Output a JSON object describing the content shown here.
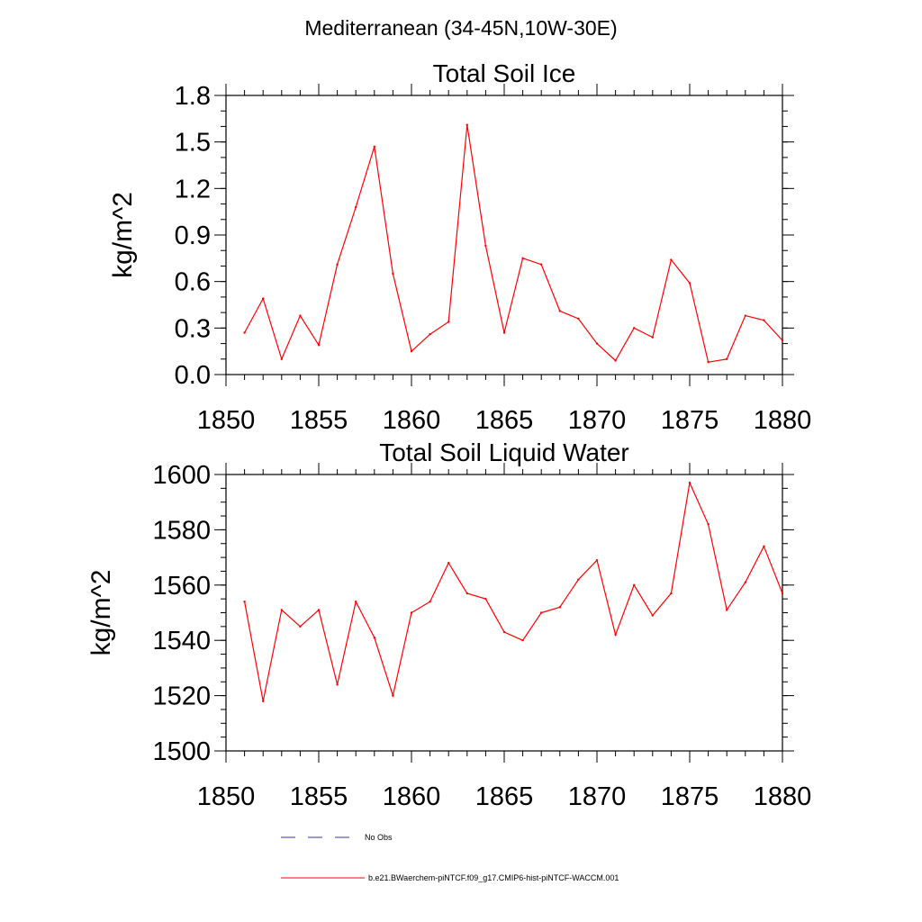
{
  "page_title": "Mediterranean (34-45N,10W-30E)",
  "colors": {
    "model": "#ff0000",
    "obs": "#3a3a9a",
    "axis": "#000000"
  },
  "legend": {
    "obs_label": "No Obs",
    "model_label": "b.e21.BWaerchem-piNTCF.f09_g17.CMIP6-hist-piNTCF-WACCM.001"
  },
  "chart_data": [
    {
      "type": "line",
      "title": "Total Soil Ice",
      "xlabel": "",
      "ylabel": "kg/m^2",
      "xlim": [
        1850,
        1880
      ],
      "ylim": [
        0.0,
        1.8
      ],
      "xticks": [
        1850,
        1855,
        1860,
        1865,
        1870,
        1875,
        1880
      ],
      "xtick_labels": [
        "1850",
        "1855",
        "1860",
        "1865",
        "1870",
        "1875",
        "1880"
      ],
      "yticks": [
        0.0,
        0.3,
        0.6,
        0.9,
        1.2,
        1.5,
        1.8
      ],
      "ytick_labels": [
        "0.0",
        "0.3",
        "0.6",
        "0.9",
        "1.2",
        "1.5",
        "1.8"
      ],
      "grid": false,
      "series": [
        {
          "name": "b.e21.BWaerchem-piNTCF.f09_g17.CMIP6-hist-piNTCF-WACCM.001",
          "x": [
            1851,
            1852,
            1853,
            1854,
            1855,
            1856,
            1857,
            1858,
            1859,
            1860,
            1861,
            1862,
            1863,
            1864,
            1865,
            1866,
            1867,
            1868,
            1869,
            1870,
            1871,
            1872,
            1873,
            1874,
            1875,
            1876,
            1877,
            1878,
            1879,
            1880
          ],
          "y": [
            0.27,
            0.49,
            0.1,
            0.38,
            0.19,
            0.71,
            1.08,
            1.47,
            0.65,
            0.15,
            0.26,
            0.34,
            1.61,
            0.83,
            0.27,
            0.75,
            0.71,
            0.41,
            0.36,
            0.2,
            0.09,
            0.3,
            0.24,
            0.74,
            0.59,
            0.08,
            0.1,
            0.38,
            0.35,
            0.22
          ]
        }
      ]
    },
    {
      "type": "line",
      "title": "Total Soil Liquid Water",
      "xlabel": "",
      "ylabel": "kg/m^2",
      "xlim": [
        1850,
        1880
      ],
      "ylim": [
        1500,
        1605
      ],
      "xticks": [
        1850,
        1855,
        1860,
        1865,
        1870,
        1875,
        1880
      ],
      "xtick_labels": [
        "1850",
        "1855",
        "1860",
        "1865",
        "1870",
        "1875",
        "1880"
      ],
      "yticks": [
        1500,
        1520,
        1540,
        1560,
        1580,
        1600
      ],
      "ytick_labels": [
        "1500",
        "1520",
        "1540",
        "1560",
        "1580",
        "1600"
      ],
      "grid": false,
      "series": [
        {
          "name": "b.e21.BWaerchem-piNTCF.f09_g17.CMIP6-hist-piNTCF-WACCM.001",
          "x": [
            1851,
            1852,
            1853,
            1854,
            1855,
            1856,
            1857,
            1858,
            1859,
            1860,
            1861,
            1862,
            1863,
            1864,
            1865,
            1866,
            1867,
            1868,
            1869,
            1870,
            1871,
            1872,
            1873,
            1874,
            1875,
            1876,
            1877,
            1878,
            1879,
            1880
          ],
          "y": [
            1554,
            1518,
            1551,
            1545,
            1551,
            1524,
            1554,
            1541,
            1520,
            1550,
            1554,
            1568,
            1557,
            1555,
            1543,
            1540,
            1550,
            1552,
            1562,
            1569,
            1542,
            1560,
            1549,
            1557,
            1597,
            1582,
            1551,
            1561,
            1574,
            1557
          ]
        }
      ]
    }
  ]
}
